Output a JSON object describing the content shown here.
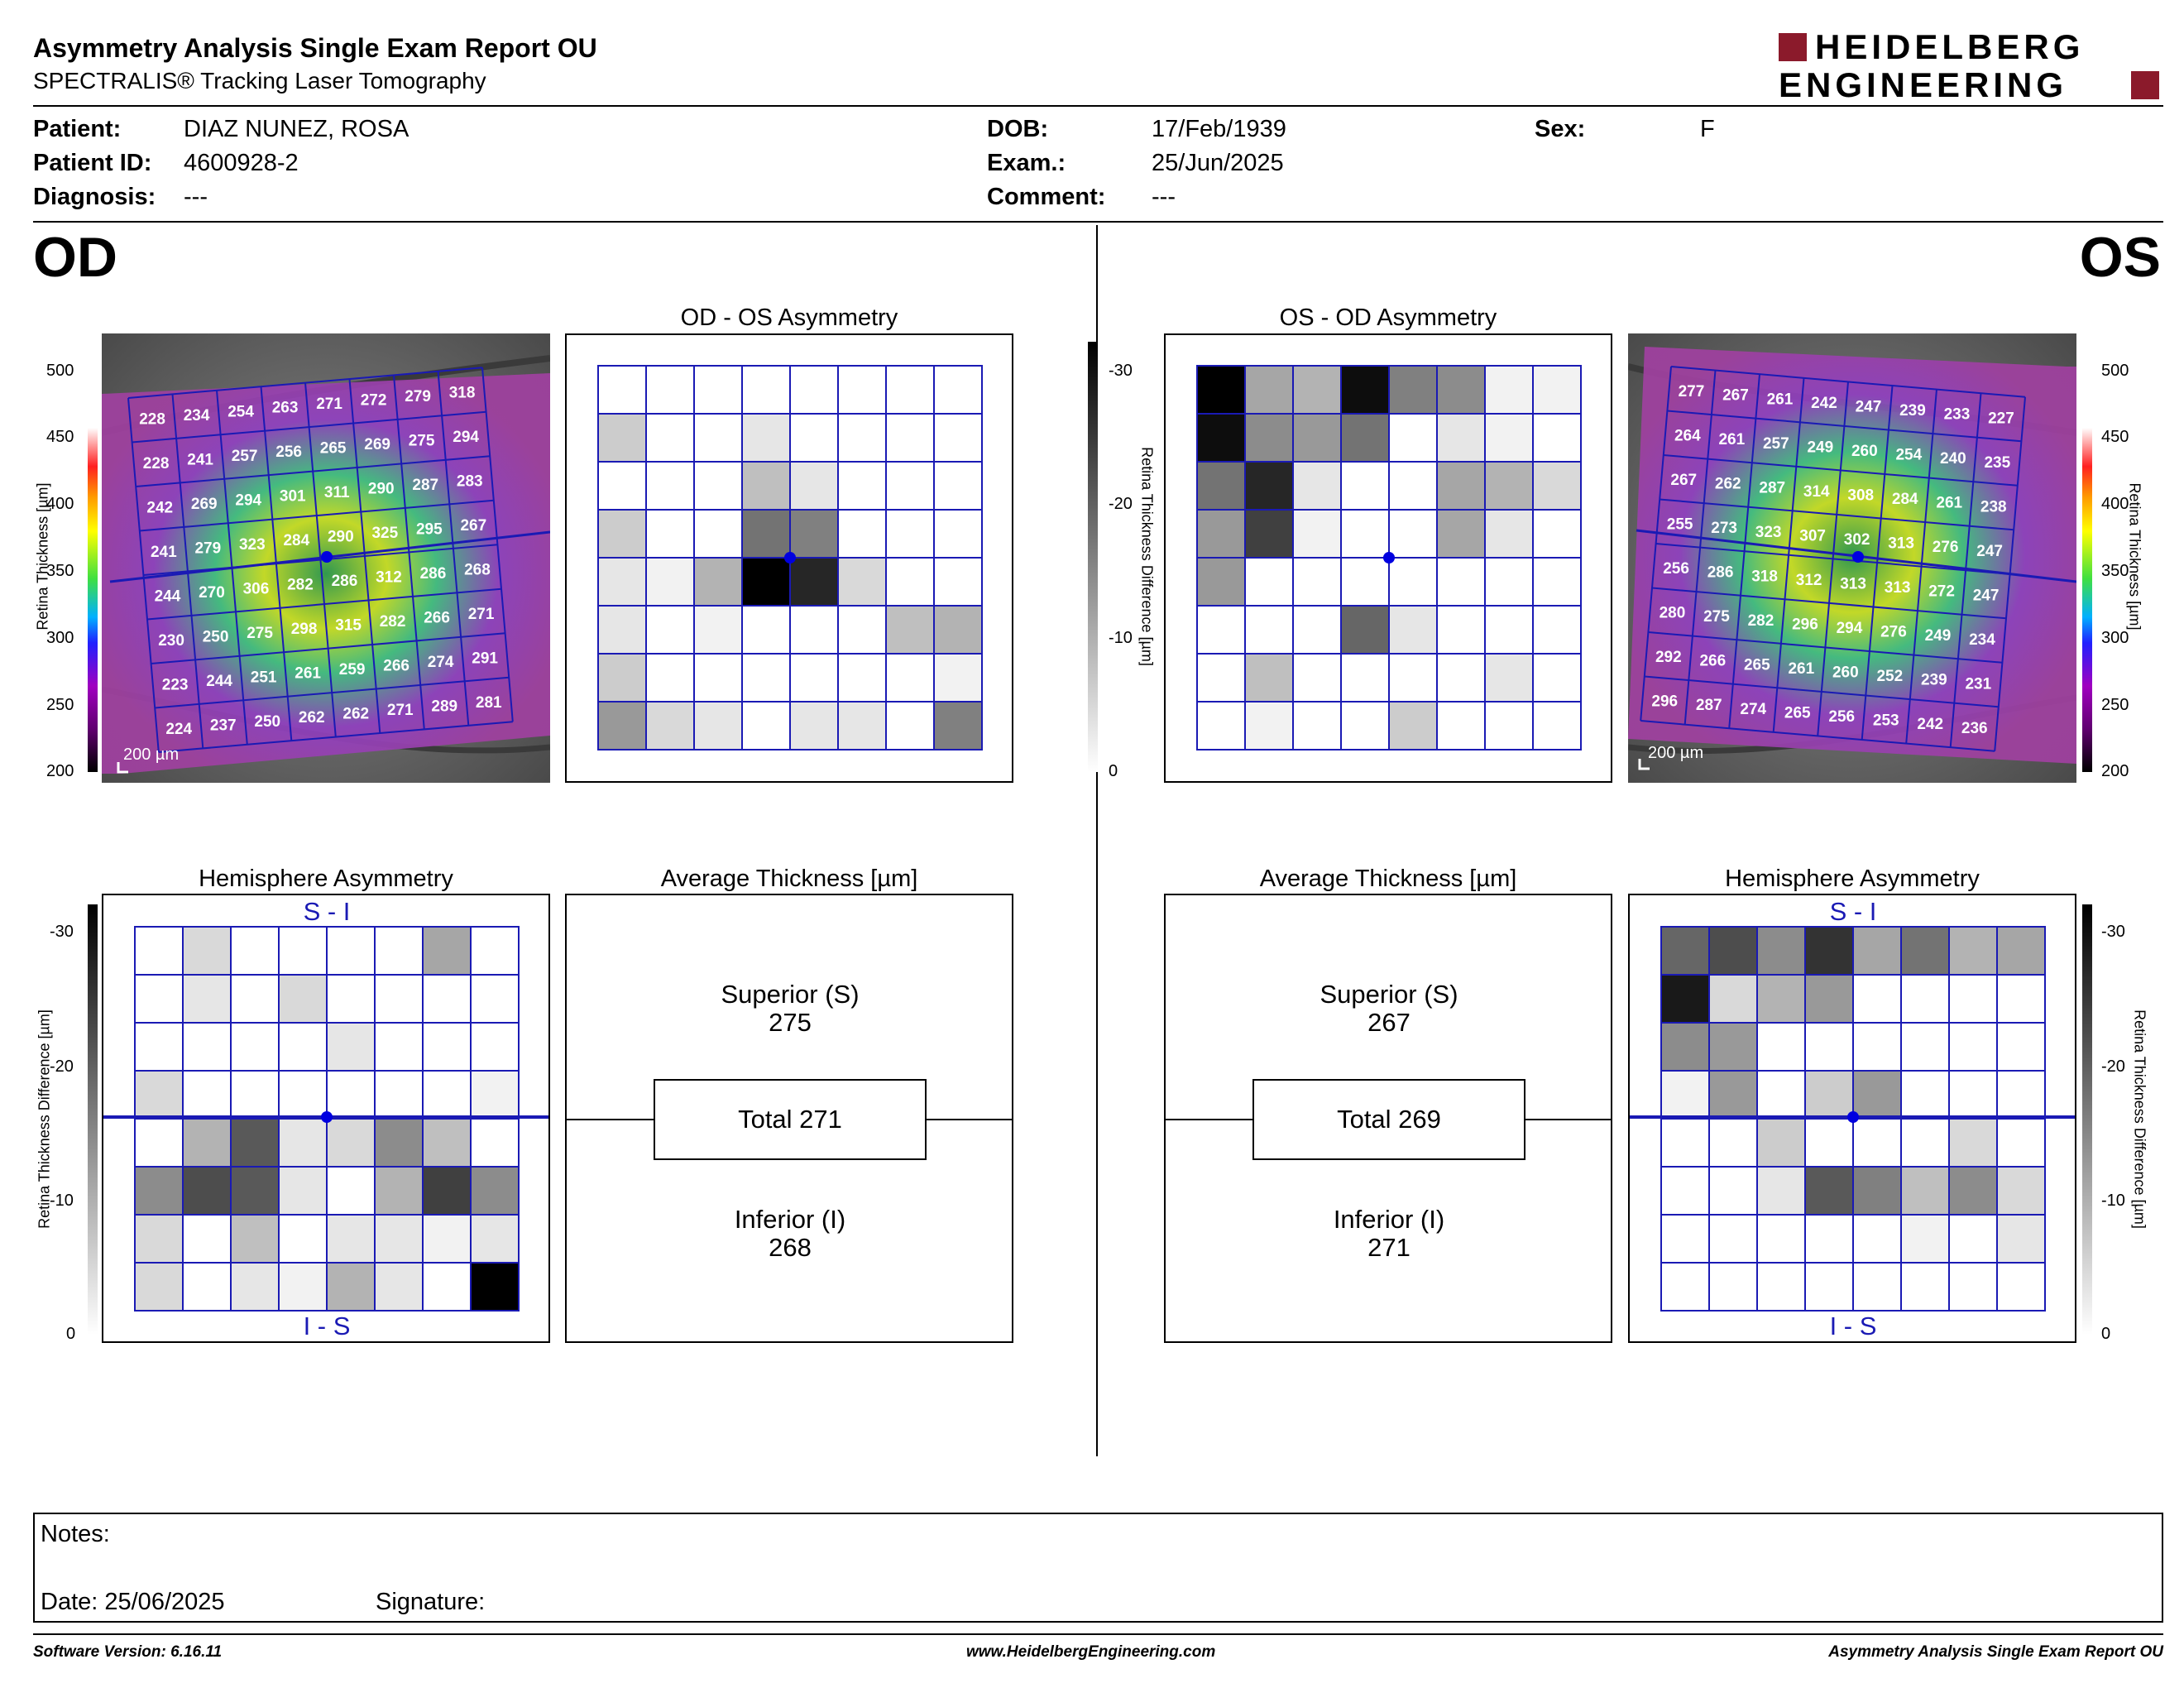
{
  "report": {
    "title": "Asymmetry Analysis Single Exam Report OU",
    "subtitle": "SPECTRALIS® Tracking Laser Tomography"
  },
  "brand": {
    "line1": "HEIDELBERG",
    "line2": "ENGINEERING",
    "accent": "#8b1a2b"
  },
  "patient": {
    "name_label": "Patient:",
    "name": "DIAZ NUNEZ, ROSA",
    "id_label": "Patient ID:",
    "id": "4600928-2",
    "diagnosis_label": "Diagnosis:",
    "diagnosis": "---",
    "dob_label": "DOB:",
    "dob": "17/Feb/1939",
    "exam_label": "Exam.:",
    "exam": "25/Jun/2025",
    "comment_label": "Comment:",
    "comment": "---",
    "sex_label": "Sex:",
    "sex": "F"
  },
  "eyes": {
    "left": "OD",
    "right": "OS"
  },
  "panels": {
    "od_os_title": "OD - OS Asymmetry",
    "os_od_title": "OS - OD Asymmetry",
    "hemi_title": "Hemisphere Asymmetry",
    "avg_title": "Average Thickness [µm]",
    "si_label": "S - I",
    "is_label": "I - S",
    "scale_bar": "200 µm"
  },
  "thickness_scale": {
    "label": "Retina Thickness [µm]",
    "ticks": [
      "500",
      "450",
      "400",
      "350",
      "300",
      "250",
      "200"
    ]
  },
  "difference_scale": {
    "label": "Retina Thickness Difference [µm]",
    "ticks": [
      "-30",
      "-20",
      "-10",
      "0"
    ]
  },
  "od": {
    "grid": [
      [
        228,
        234,
        254,
        263,
        271,
        272,
        279,
        318
      ],
      [
        228,
        241,
        257,
        256,
        265,
        269,
        275,
        294
      ],
      [
        242,
        269,
        294,
        301,
        311,
        290,
        287,
        283
      ],
      [
        241,
        279,
        323,
        284,
        290,
        325,
        295,
        267
      ],
      [
        244,
        270,
        306,
        282,
        286,
        312,
        286,
        268
      ],
      [
        230,
        250,
        275,
        298,
        315,
        282,
        266,
        271
      ],
      [
        223,
        244,
        251,
        261,
        259,
        266,
        274,
        291
      ],
      [
        224,
        237,
        250,
        262,
        262,
        271,
        289,
        281
      ]
    ],
    "asymmetry": [
      [
        0,
        0,
        0,
        0,
        0,
        0,
        0,
        0
      ],
      [
        0.2,
        0,
        0,
        0.1,
        0,
        0,
        0,
        0
      ],
      [
        0,
        0,
        0,
        0.25,
        0.1,
        0,
        0,
        0
      ],
      [
        0.2,
        0,
        0,
        0.55,
        0.5,
        0,
        0,
        0
      ],
      [
        0.1,
        0.05,
        0.3,
        1,
        0.85,
        0.15,
        0,
        0
      ],
      [
        0.1,
        0,
        0.05,
        0,
        0,
        0,
        0.25,
        0.3
      ],
      [
        0.2,
        0,
        0,
        0,
        0,
        0,
        0,
        0.05
      ],
      [
        0.4,
        0.15,
        0.1,
        0,
        0.1,
        0.1,
        0,
        0.5
      ]
    ],
    "hemisphere": [
      [
        0,
        0.15,
        0,
        0,
        0,
        0,
        0.35,
        0
      ],
      [
        0,
        0.1,
        0,
        0.15,
        0,
        0,
        0,
        0
      ],
      [
        0,
        0,
        0,
        0,
        0.1,
        0,
        0,
        0
      ],
      [
        0.15,
        0,
        0,
        0,
        0,
        0,
        0,
        0.05
      ],
      [
        0,
        0.3,
        0.65,
        0.1,
        0.15,
        0.45,
        0.25,
        0
      ],
      [
        0.45,
        0.7,
        0.65,
        0.1,
        0,
        0.3,
        0.75,
        0.45
      ],
      [
        0.15,
        0,
        0.25,
        0,
        0.1,
        0.1,
        0.05,
        0.1
      ],
      [
        0.15,
        0,
        0.1,
        0.05,
        0.3,
        0.1,
        0,
        1
      ]
    ],
    "superior_label": "Superior (S)",
    "superior": "275",
    "total_label": "Total 271",
    "inferior_label": "Inferior (I)",
    "inferior": "268"
  },
  "os": {
    "grid": [
      [
        277,
        267,
        261,
        242,
        247,
        239,
        233,
        227
      ],
      [
        264,
        261,
        257,
        249,
        260,
        254,
        240,
        235
      ],
      [
        267,
        262,
        287,
        314,
        308,
        284,
        261,
        238
      ],
      [
        255,
        273,
        323,
        307,
        302,
        313,
        276,
        247
      ],
      [
        256,
        286,
        318,
        312,
        313,
        313,
        272,
        247
      ],
      [
        280,
        275,
        282,
        296,
        294,
        276,
        249,
        234
      ],
      [
        292,
        266,
        265,
        261,
        260,
        252,
        239,
        231
      ],
      [
        296,
        287,
        274,
        265,
        256,
        253,
        242,
        236
      ]
    ],
    "asymmetry": [
      [
        1,
        0.35,
        0.3,
        0.95,
        0.5,
        0.45,
        0.05,
        0.05
      ],
      [
        0.95,
        0.45,
        0.4,
        0.55,
        0,
        0.1,
        0.05,
        0
      ],
      [
        0.55,
        0.85,
        0.1,
        0,
        0,
        0.35,
        0.3,
        0.15
      ],
      [
        0.4,
        0.75,
        0.05,
        0,
        0,
        0.35,
        0.1,
        0
      ],
      [
        0.4,
        0,
        0,
        0,
        0,
        0,
        0,
        0
      ],
      [
        0,
        0,
        0,
        0.6,
        0.1,
        0,
        0,
        0
      ],
      [
        0,
        0.25,
        0,
        0,
        0,
        0,
        0.1,
        0
      ],
      [
        0,
        0.05,
        0,
        0,
        0.2,
        0,
        0,
        0
      ]
    ],
    "hemisphere": [
      [
        0.6,
        0.7,
        0.45,
        0.8,
        0.35,
        0.55,
        0.3,
        0.35
      ],
      [
        0.9,
        0.15,
        0.3,
        0.4,
        0,
        0,
        0,
        0
      ],
      [
        0.45,
        0.4,
        0,
        0,
        0,
        0,
        0,
        0
      ],
      [
        0.05,
        0.4,
        0,
        0.2,
        0.4,
        0,
        0,
        0
      ],
      [
        0,
        0,
        0.2,
        0,
        0,
        0,
        0.15,
        0
      ],
      [
        0,
        0,
        0.1,
        0.65,
        0.5,
        0.25,
        0.45,
        0.15
      ],
      [
        0,
        0,
        0,
        0,
        0,
        0.05,
        0,
        0.1
      ],
      [
        0,
        0,
        0,
        0,
        0,
        0,
        0,
        0
      ]
    ],
    "superior_label": "Superior (S)",
    "superior": "267",
    "total_label": "Total 269",
    "inferior_label": "Inferior (I)",
    "inferior": "271"
  },
  "notes": {
    "notes_label": "Notes:",
    "date_label": "Date: 25/06/2025",
    "signature_label": "Signature:"
  },
  "footer": {
    "software": "Software Version: 6.16.11",
    "website": "www.HeidelbergEngineering.com",
    "report_name": "Asymmetry Analysis Single Exam Report OU"
  },
  "colors": {
    "grid_blue": "#1a1ab4",
    "fovea_blue": "#0000e0"
  }
}
